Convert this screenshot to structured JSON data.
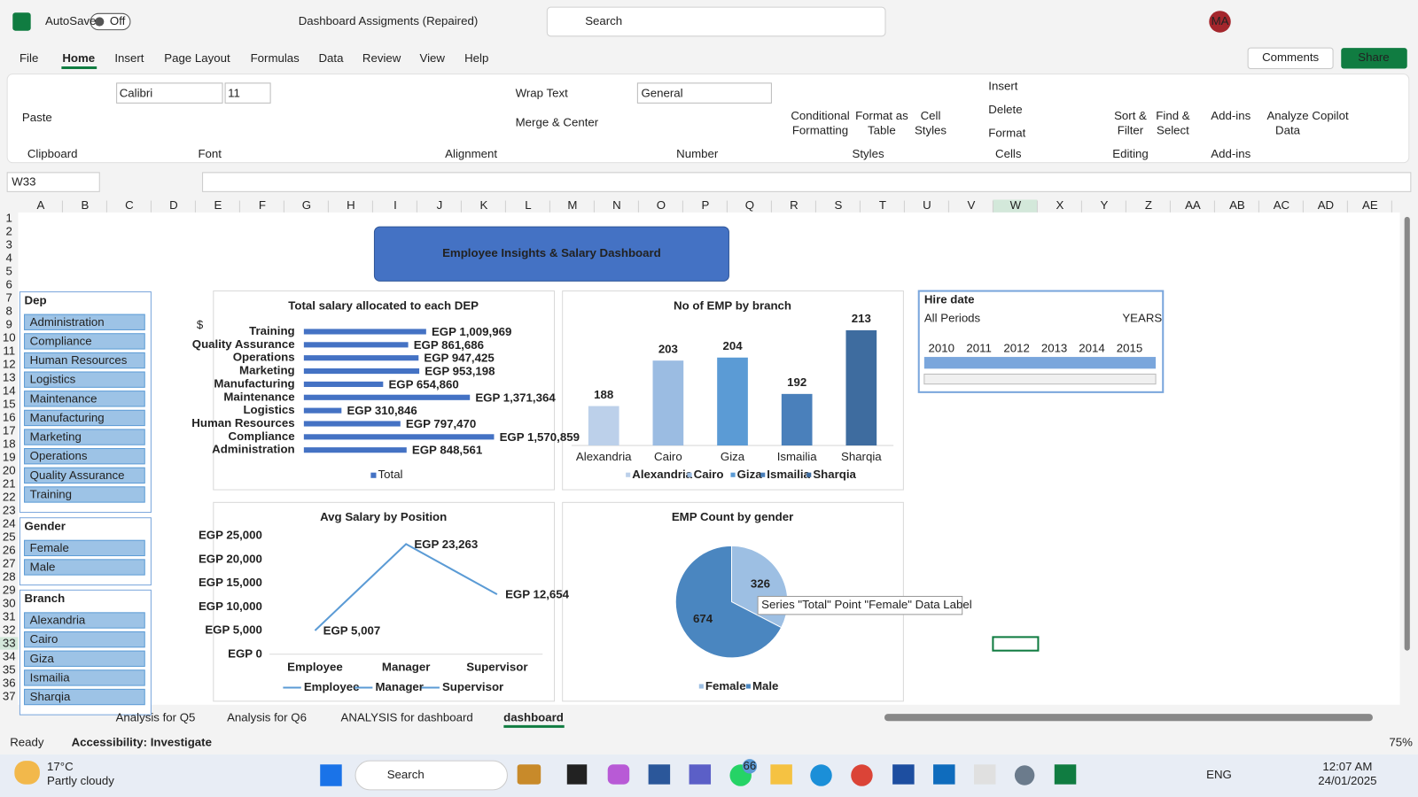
{
  "title_bar": {
    "autosave": "AutoSave",
    "autosave_state": "Off",
    "document": "Dashboard Assigments (Repaired)",
    "search": "Search",
    "user": "MA"
  },
  "menu": [
    "File",
    "Home",
    "Insert",
    "Page Layout",
    "Formulas",
    "Data",
    "Review",
    "View",
    "Help"
  ],
  "comments": "Comments",
  "share": "Share",
  "ribbon": {
    "paste": "Paste",
    "font": "Calibri",
    "font_size": "11",
    "wrap_text": "Wrap Text",
    "merge": "Merge & Center",
    "number_format": "General",
    "styles_buttons": [
      [
        "Conditional",
        "Formatting"
      ],
      [
        "Format as",
        "Table"
      ],
      [
        "Cell",
        "Styles"
      ]
    ],
    "cells_buttons": [
      "Insert",
      "Delete",
      "Format"
    ],
    "editing_buttons": [
      [
        "Sort &",
        "Filter"
      ],
      [
        "Find &",
        "Select"
      ]
    ],
    "addin_buttons": [
      [
        "Add-ins"
      ],
      [
        "Analyze",
        "Data"
      ],
      [
        "Copilot"
      ]
    ],
    "groups": [
      "Clipboard",
      "Font",
      "Alignment",
      "Number",
      "Styles",
      "Cells",
      "Editing",
      "Add-ins"
    ]
  },
  "formula_bar": {
    "name_box": "W33"
  },
  "columns": [
    "A",
    "B",
    "C",
    "D",
    "E",
    "F",
    "G",
    "H",
    "I",
    "J",
    "K",
    "L",
    "M",
    "N",
    "O",
    "P",
    "Q",
    "R",
    "S",
    "T",
    "U",
    "V",
    "W",
    "X",
    "Y",
    "Z",
    "AA",
    "AB",
    "AC",
    "AD",
    "AE"
  ],
  "rows": [
    1,
    2,
    3,
    4,
    5,
    6,
    7,
    8,
    9,
    10,
    11,
    12,
    13,
    14,
    15,
    16,
    17,
    18,
    19,
    20,
    21,
    22,
    23,
    24,
    25,
    26,
    27,
    28,
    29,
    30,
    31,
    32,
    33,
    34,
    35,
    36,
    37
  ],
  "dashboard_title": "Employee Insights & Salary Dashboard",
  "currency_symbol": "$",
  "slicers": [
    {
      "title": "Dep",
      "items": [
        "Administration",
        "Compliance",
        "Human Resources",
        "Logistics",
        "Maintenance",
        "Manufacturing",
        "Marketing",
        "Operations",
        "Quality Assurance",
        "Training"
      ]
    },
    {
      "title": "Gender",
      "items": [
        "Female",
        "Male"
      ]
    },
    {
      "title": "Branch",
      "items": [
        "Alexandria",
        "Cairo",
        "Giza",
        "Ismailia",
        "Sharqia"
      ]
    }
  ],
  "timeline": {
    "title": "Hire date",
    "period": "All Periods",
    "level": "YEARS",
    "years": [
      2010,
      2011,
      2012,
      2013,
      2014,
      2015
    ]
  },
  "chart_data": [
    {
      "type": "hbar",
      "title": "Total salary allocated to each DEP",
      "categories": [
        "Training",
        "Quality Assurance",
        "Operations",
        "Marketing",
        "Manufacturing",
        "Maintenance",
        "Logistics",
        "Human Resources",
        "Compliance",
        "Administration"
      ],
      "series": [
        {
          "name": "Total",
          "color": "#4472c4",
          "values": [
            1009969,
            861686,
            947425,
            953198,
            654860,
            1371364,
            310846,
            797470,
            1570859,
            848561
          ],
          "value_labels": [
            "EGP 1,009,969",
            "EGP 861,686",
            "EGP 947,425",
            "EGP 953,198",
            "EGP 654,860",
            "EGP 1,371,364",
            "EGP 310,846",
            "EGP 797,470",
            "EGP 1,570,859",
            "EGP 848,561"
          ]
        }
      ],
      "xlim": [
        0,
        1800000
      ]
    },
    {
      "type": "column",
      "title": "No of EMP by branch",
      "categories": [
        "Alexandria",
        "Cairo",
        "Giza",
        "Ismailia",
        "Sharqia"
      ],
      "values": [
        188,
        203,
        204,
        192,
        213
      ],
      "colors": [
        "#bcd0ea",
        "#9bbce2",
        "#5b9bd5",
        "#4a80bb",
        "#3e6c9f"
      ],
      "ylim": [
        175,
        220
      ]
    },
    {
      "type": "line",
      "title": "Avg Salary by Position",
      "categories": [
        "Employee",
        "Manager",
        "Supervisor"
      ],
      "values": [
        5007,
        23263,
        12654
      ],
      "value_labels": [
        "EGP 5,007",
        "EGP 23,263",
        "EGP 12,654"
      ],
      "color": "#5b9bd5",
      "ylim": [
        0,
        25000
      ],
      "yticks": [
        {
          "value": 0,
          "label": "EGP 0"
        },
        {
          "value": 5000,
          "label": "EGP 5,000"
        },
        {
          "value": 10000,
          "label": "EGP 10,000"
        },
        {
          "value": 15000,
          "label": "EGP 15,000"
        },
        {
          "value": 20000,
          "label": "EGP 20,000"
        },
        {
          "value": 25000,
          "label": "EGP 25,000"
        }
      ]
    },
    {
      "type": "pie",
      "title": "EMP Count by gender",
      "categories": [
        "Female",
        "Male"
      ],
      "values": [
        326,
        674
      ],
      "colors": [
        "#9dbfe3",
        "#4a86c0"
      ]
    }
  ],
  "tooltip": "Series \"Total\" Point \"Female\" Data Label",
  "sheet_tabs": [
    "Analysis for Q5",
    "Analysis for Q6",
    "ANALYSIS for dashboard",
    "dashboard"
  ],
  "status_bar": {
    "ready": "Ready",
    "accessibility": "Accessibility: Investigate",
    "zoom": "75%"
  },
  "taskbar": {
    "temperature": "17°C",
    "weather": "Partly cloudy",
    "search": "Search",
    "badge": "66",
    "language": "ENG",
    "time": "12:07 AM",
    "date": "24/01/2025"
  }
}
